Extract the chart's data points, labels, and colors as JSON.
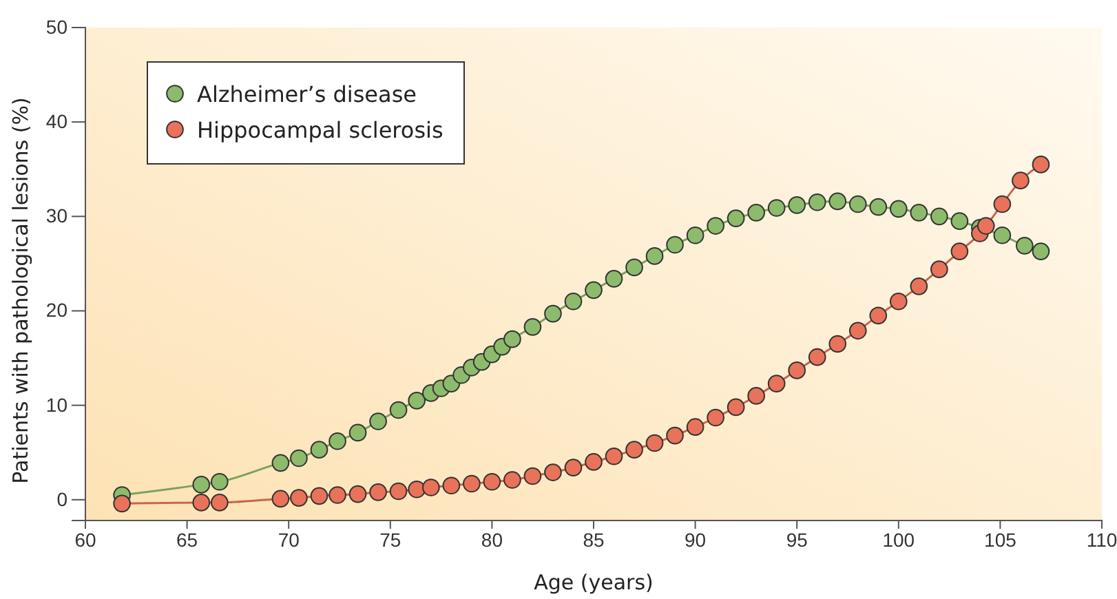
{
  "chart_data": {
    "type": "line",
    "xlabel": "Age (years)",
    "ylabel": "Patients with pathological lesions (%)",
    "xlim": [
      60,
      110
    ],
    "xticks": [
      60,
      65,
      70,
      75,
      80,
      85,
      90,
      95,
      100,
      105,
      110
    ],
    "ylim": [
      -2.2,
      50
    ],
    "yticks": [
      0,
      10,
      20,
      30,
      40,
      50
    ],
    "grid": false,
    "legend": "top left",
    "marker": "circle",
    "line_style": "solid",
    "series": [
      {
        "name": "Alzheimer’s disease",
        "color": "#8cbb6c",
        "x": [
          61.8,
          65.7,
          66.6,
          69.6,
          70.5,
          71.5,
          72.4,
          73.4,
          74.4,
          75.4,
          76.3,
          77,
          77.5,
          78,
          78.5,
          79,
          79.5,
          80,
          80.5,
          81,
          82,
          83,
          84,
          85,
          86,
          87,
          88,
          89,
          90,
          91,
          92,
          93,
          94,
          95,
          96,
          97,
          98,
          99,
          100,
          101,
          102,
          103,
          104,
          105.1,
          106.2,
          107
        ],
        "values": [
          0.5,
          1.6,
          1.9,
          3.9,
          4.4,
          5.3,
          6.2,
          7.1,
          8.3,
          9.5,
          10.5,
          11.3,
          11.8,
          12.3,
          13.2,
          14,
          14.6,
          15.4,
          16.2,
          17,
          18.3,
          19.7,
          21,
          22.2,
          23.4,
          24.6,
          25.8,
          27,
          28,
          29,
          29.8,
          30.4,
          30.9,
          31.2,
          31.5,
          31.6,
          31.3,
          31,
          30.8,
          30.4,
          30,
          29.5,
          28.8,
          28,
          26.9,
          26.3
        ]
      },
      {
        "name": "Hippocampal sclerosis",
        "color": "#e8735a",
        "x": [
          61.8,
          65.7,
          66.6,
          69.6,
          70.5,
          71.5,
          72.4,
          73.4,
          74.4,
          75.4,
          76.3,
          77,
          78,
          79,
          80,
          81,
          82,
          83,
          84,
          85,
          86,
          87,
          88,
          89,
          90,
          91,
          92,
          93,
          94,
          95,
          96,
          97,
          98,
          99,
          100,
          101,
          102,
          103,
          104,
          104.3,
          105.1,
          106,
          107
        ],
        "values": [
          -0.4,
          -0.3,
          -0.3,
          0.1,
          0.2,
          0.4,
          0.5,
          0.6,
          0.8,
          0.9,
          1.1,
          1.3,
          1.5,
          1.7,
          1.9,
          2.1,
          2.5,
          2.9,
          3.4,
          4,
          4.6,
          5.3,
          6,
          6.8,
          7.7,
          8.7,
          9.8,
          11,
          12.3,
          13.7,
          15.1,
          16.5,
          17.9,
          19.5,
          21,
          22.6,
          24.4,
          26.3,
          28.2,
          29,
          31.3,
          33.8,
          35.5
        ]
      }
    ]
  }
}
